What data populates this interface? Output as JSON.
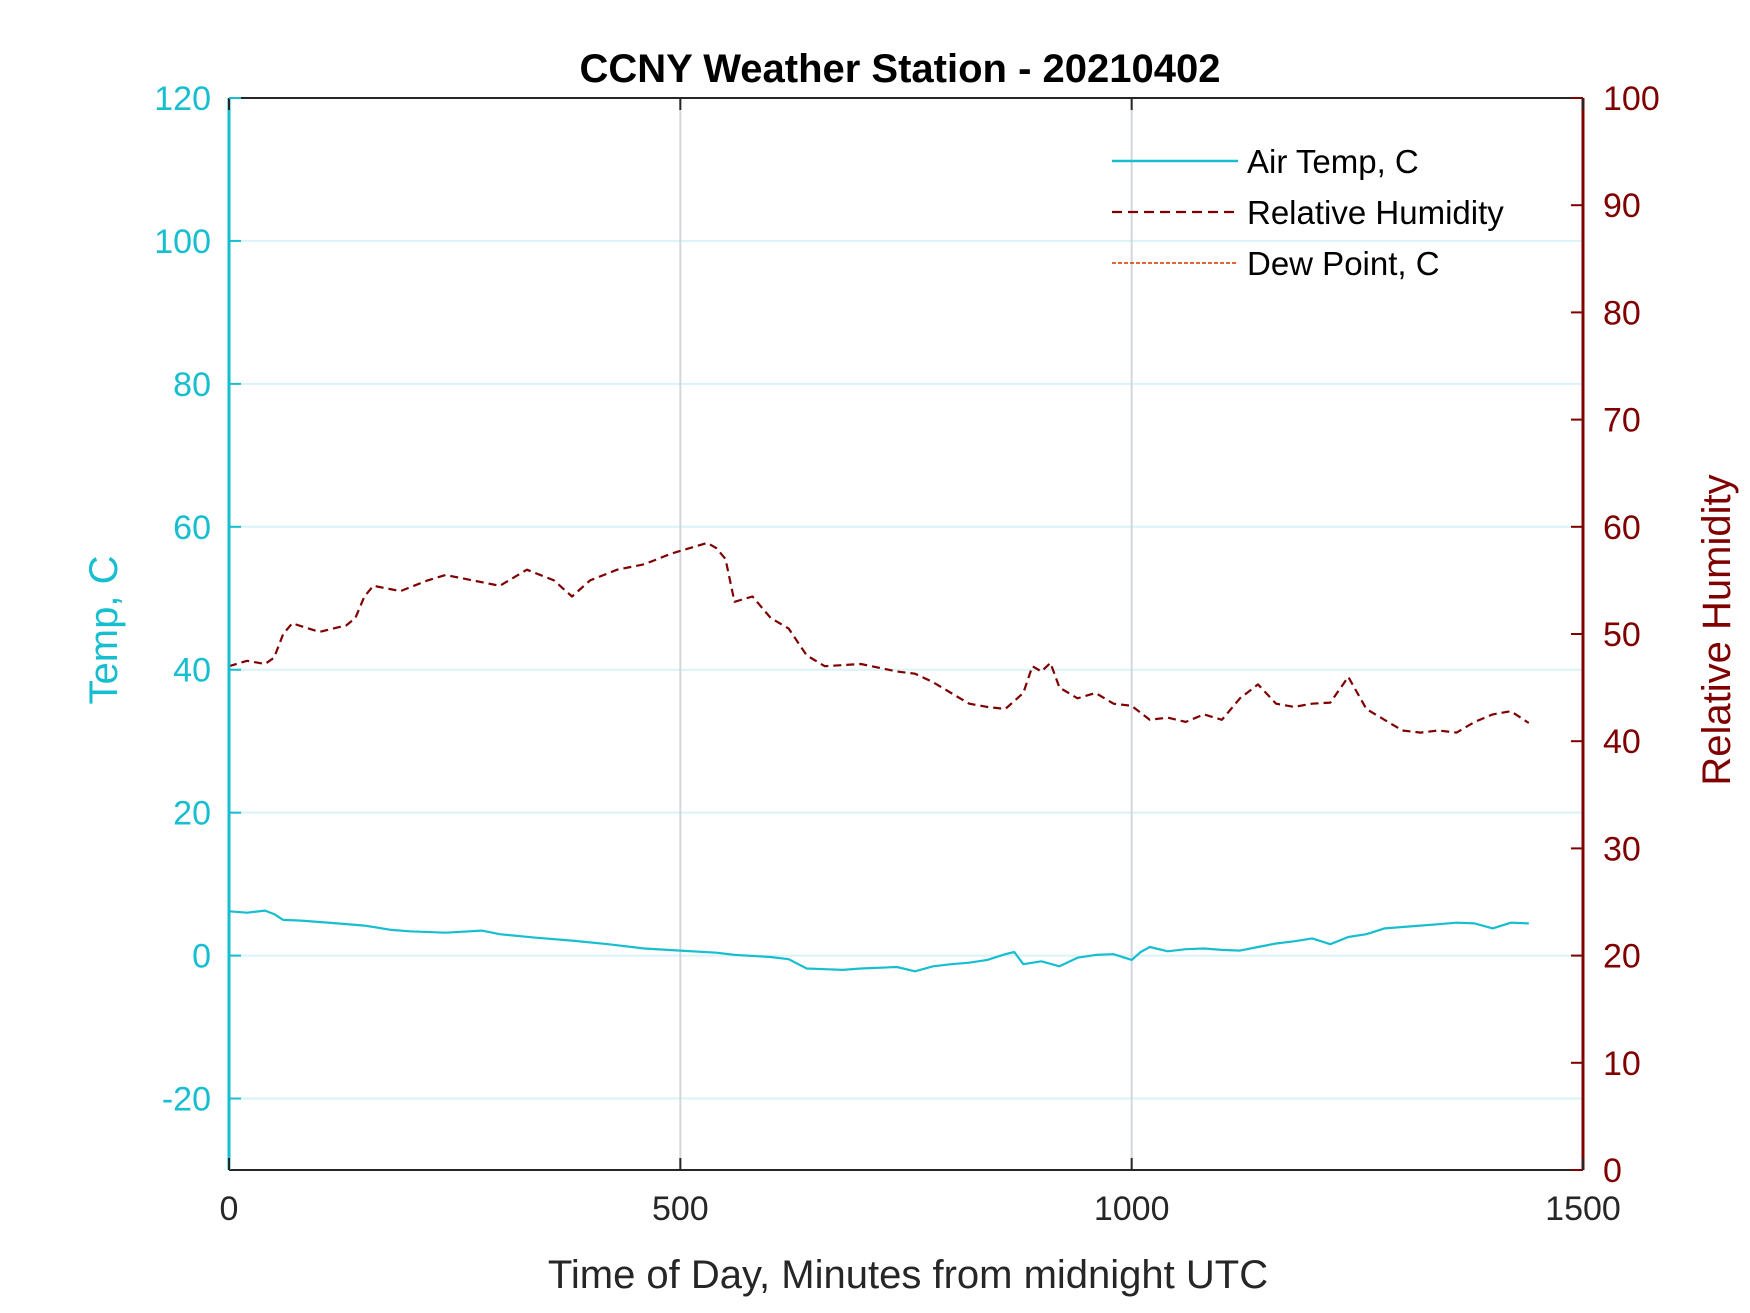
{
  "colors": {
    "left_axis": "#17becf",
    "right_axis": "#7f0000",
    "air_temp": "#17becf",
    "humidity": "#7f0000",
    "dew_point": "#d95319",
    "grid_left": "#d9f3f7",
    "grid_vertical": "#d2d6dc",
    "bottom_axis": "#262626"
  },
  "chart_data": {
    "type": "line",
    "title": "CCNY Weather Station - 20210402",
    "xlabel": "Time of Day, Minutes from midnight UTC",
    "ylabel_left": "Temp, C",
    "ylabel_right": "Relative Humidity",
    "xlim": [
      0,
      1500
    ],
    "ylim_left": [
      -30,
      120
    ],
    "ylim_right": [
      0,
      100
    ],
    "x_ticks": [
      "0",
      "500",
      "1000",
      "1500"
    ],
    "x_tick_values": [
      0,
      500,
      1000,
      1500
    ],
    "y_left_ticks": [
      "-20",
      "0",
      "20",
      "40",
      "60",
      "80",
      "100",
      "120"
    ],
    "y_left_tick_values": [
      -20,
      0,
      20,
      40,
      60,
      80,
      100,
      120
    ],
    "y_right_ticks": [
      "0",
      "10",
      "20",
      "30",
      "40",
      "50",
      "60",
      "70",
      "80",
      "90",
      "100"
    ],
    "y_right_tick_values": [
      0,
      10,
      20,
      30,
      40,
      50,
      60,
      70,
      80,
      90,
      100
    ],
    "grid": {
      "horizontal_left_axis": true,
      "vertical": true
    },
    "legend_position": "top-right",
    "series": [
      {
        "name": "Air Temp, C",
        "axis": "left",
        "style": "solid",
        "x": [
          0,
          20,
          40,
          50,
          60,
          80,
          100,
          120,
          150,
          180,
          200,
          240,
          280,
          300,
          340,
          380,
          420,
          460,
          500,
          540,
          560,
          600,
          620,
          640,
          660,
          680,
          700,
          740,
          760,
          780,
          800,
          820,
          840,
          860,
          870,
          880,
          900,
          920,
          940,
          960,
          980,
          1000,
          1010,
          1020,
          1040,
          1060,
          1080,
          1100,
          1120,
          1140,
          1160,
          1180,
          1200,
          1220,
          1240,
          1260,
          1280,
          1300,
          1320,
          1340,
          1360,
          1380,
          1400,
          1420,
          1440
        ],
        "y": [
          6.2,
          6.0,
          6.3,
          5.8,
          5.0,
          4.9,
          4.7,
          4.5,
          4.2,
          3.6,
          3.4,
          3.2,
          3.5,
          3.0,
          2.5,
          2.1,
          1.6,
          1.0,
          0.7,
          0.4,
          0.1,
          -0.2,
          -0.5,
          -1.8,
          -1.9,
          -2.0,
          -1.8,
          -1.6,
          -2.2,
          -1.5,
          -1.2,
          -1.0,
          -0.6,
          0.2,
          0.5,
          -1.2,
          -0.8,
          -1.5,
          -0.3,
          0.1,
          0.2,
          -0.6,
          0.5,
          1.2,
          0.6,
          0.9,
          1.0,
          0.8,
          0.7,
          1.2,
          1.7,
          2.0,
          2.4,
          1.6,
          2.6,
          3.0,
          3.8,
          4.0,
          4.2,
          4.4,
          4.6,
          4.5,
          3.8,
          4.6,
          4.5
        ]
      },
      {
        "name": "Relative Humidity",
        "axis": "right",
        "style": "dashed",
        "x": [
          0,
          20,
          40,
          50,
          60,
          70,
          100,
          130,
          140,
          150,
          160,
          190,
          220,
          240,
          270,
          300,
          330,
          360,
          380,
          400,
          430,
          460,
          490,
          510,
          530,
          540,
          550,
          560,
          580,
          600,
          620,
          640,
          660,
          700,
          740,
          760,
          780,
          800,
          820,
          840,
          860,
          880,
          890,
          900,
          910,
          920,
          940,
          960,
          980,
          1000,
          1020,
          1040,
          1060,
          1080,
          1100,
          1120,
          1140,
          1160,
          1180,
          1200,
          1220,
          1240,
          1260,
          1280,
          1300,
          1320,
          1340,
          1360,
          1380,
          1400,
          1420,
          1440
        ],
        "y": [
          47.0,
          47.5,
          47.2,
          47.8,
          50.0,
          51.0,
          50.2,
          50.8,
          51.5,
          53.5,
          54.5,
          54.0,
          55.0,
          55.5,
          55.0,
          54.5,
          56.0,
          55.0,
          53.5,
          55.0,
          56.0,
          56.5,
          57.5,
          58.0,
          58.5,
          58.0,
          57.0,
          53.0,
          53.5,
          51.5,
          50.5,
          48.0,
          47.0,
          47.2,
          46.5,
          46.3,
          45.5,
          44.5,
          43.5,
          43.2,
          43.0,
          44.5,
          47.0,
          46.5,
          47.3,
          45.0,
          44.0,
          44.5,
          43.5,
          43.3,
          42.0,
          42.2,
          41.8,
          42.5,
          42.0,
          44.0,
          45.3,
          43.5,
          43.2,
          43.5,
          43.6,
          46.0,
          43.0,
          42.0,
          41.0,
          40.8,
          41.0,
          40.8,
          41.8,
          42.5,
          42.8,
          41.7
        ]
      },
      {
        "name": "Dew Point, C",
        "axis": "left",
        "style": "dash-dot",
        "x": [],
        "y": []
      }
    ]
  }
}
